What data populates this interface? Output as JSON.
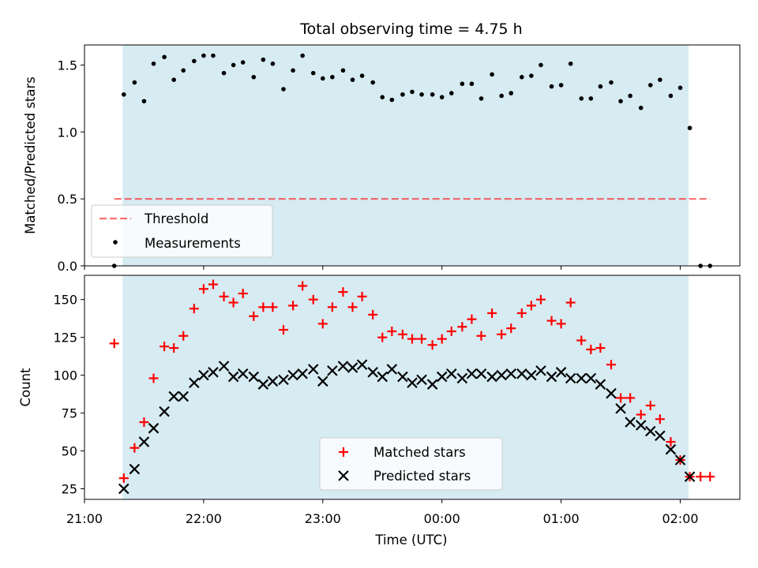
{
  "chart_data": {
    "type": "scatter",
    "title": "Total observing time = 4.75 h",
    "xlabel": "Time (UTC)",
    "x_ticks": [
      "21:00",
      "22:00",
      "23:00",
      "00:00",
      "01:00",
      "02:00"
    ],
    "x_unit": "hours since 21:00 UTC",
    "xlim": [
      0,
      5.5
    ],
    "shaded_interval": [
      0.32,
      5.07
    ],
    "panels": [
      {
        "ylabel": "Matched/Predicted stars",
        "ylim": [
          0,
          1.65
        ],
        "y_ticks": [
          0.0,
          0.5,
          1.0,
          1.5
        ],
        "y_tick_labels": [
          "0.0",
          "0.5",
          "1.0",
          "1.5"
        ],
        "legend": [
          "Threshold",
          "Measurements"
        ],
        "threshold": 0.5,
        "threshold_x": [
          0.25,
          5.25
        ],
        "series": [
          {
            "name": "Measurements",
            "x": [
              0.25,
              0.33,
              0.42,
              0.5,
              0.58,
              0.67,
              0.75,
              0.83,
              0.92,
              1.0,
              1.08,
              1.17,
              1.25,
              1.33,
              1.42,
              1.5,
              1.58,
              1.67,
              1.75,
              1.83,
              1.92,
              2.0,
              2.08,
              2.17,
              2.25,
              2.33,
              2.42,
              2.5,
              2.58,
              2.67,
              2.75,
              2.83,
              2.92,
              3.0,
              3.08,
              3.17,
              3.25,
              3.33,
              3.42,
              3.5,
              3.58,
              3.67,
              3.75,
              3.83,
              3.92,
              4.0,
              4.08,
              4.17,
              4.25,
              4.33,
              4.42,
              4.5,
              4.58,
              4.67,
              4.75,
              4.83,
              4.92,
              5.0,
              5.08,
              5.17,
              5.25
            ],
            "values": [
              0.0,
              1.28,
              1.37,
              1.23,
              1.51,
              1.56,
              1.39,
              1.46,
              1.53,
              1.57,
              1.57,
              1.44,
              1.5,
              1.52,
              1.41,
              1.54,
              1.51,
              1.32,
              1.46,
              1.57,
              1.44,
              1.4,
              1.41,
              1.46,
              1.39,
              1.42,
              1.37,
              1.26,
              1.24,
              1.28,
              1.3,
              1.28,
              1.28,
              1.26,
              1.29,
              1.36,
              1.36,
              1.25,
              1.43,
              1.27,
              1.29,
              1.41,
              1.42,
              1.5,
              1.34,
              1.35,
              1.51,
              1.25,
              1.25,
              1.34,
              1.37,
              1.23,
              1.27,
              1.18,
              1.35,
              1.39,
              1.27,
              1.33,
              1.03,
              0.0,
              0.0
            ]
          }
        ]
      },
      {
        "ylabel": "Count",
        "ylim": [
          18,
          166
        ],
        "y_ticks": [
          25,
          50,
          75,
          100,
          125,
          150
        ],
        "y_tick_labels": [
          "25",
          "50",
          "75",
          "100",
          "125",
          "150"
        ],
        "legend": [
          "Matched stars",
          "Predicted stars"
        ],
        "series": [
          {
            "name": "Matched stars",
            "color": "#ff0000",
            "x": [
              0.25,
              0.33,
              0.42,
              0.5,
              0.58,
              0.67,
              0.75,
              0.83,
              0.92,
              1.0,
              1.08,
              1.17,
              1.25,
              1.33,
              1.42,
              1.5,
              1.58,
              1.67,
              1.75,
              1.83,
              1.92,
              2.0,
              2.08,
              2.17,
              2.25,
              2.33,
              2.42,
              2.5,
              2.58,
              2.67,
              2.75,
              2.83,
              2.92,
              3.0,
              3.08,
              3.17,
              3.25,
              3.33,
              3.42,
              3.5,
              3.58,
              3.67,
              3.75,
              3.83,
              3.92,
              4.0,
              4.08,
              4.17,
              4.25,
              4.33,
              4.42,
              4.5,
              4.58,
              4.67,
              4.75,
              4.83,
              4.92,
              5.0,
              5.08,
              5.17,
              5.25
            ],
            "values": [
              121,
              32,
              52,
              69,
              98,
              119,
              118,
              126,
              144,
              157,
              160,
              152,
              148,
              154,
              139,
              145,
              145,
              130,
              146,
              159,
              150,
              134,
              145,
              155,
              145,
              152,
              140,
              125,
              129,
              127,
              124,
              124,
              120,
              124,
              129,
              132,
              137,
              126,
              141,
              127,
              131,
              141,
              146,
              150,
              136,
              134,
              148,
              123,
              117,
              118,
              107,
              85,
              85,
              74,
              80,
              71,
              56,
              44,
              33,
              33,
              33
            ]
          },
          {
            "name": "Predicted stars",
            "color": "#000000",
            "x": [
              0.33,
              0.42,
              0.5,
              0.58,
              0.67,
              0.75,
              0.83,
              0.92,
              1.0,
              1.08,
              1.17,
              1.25,
              1.33,
              1.42,
              1.5,
              1.58,
              1.67,
              1.75,
              1.83,
              1.92,
              2.0,
              2.08,
              2.17,
              2.25,
              2.33,
              2.42,
              2.5,
              2.58,
              2.67,
              2.75,
              2.83,
              2.92,
              3.0,
              3.08,
              3.17,
              3.25,
              3.33,
              3.42,
              3.5,
              3.58,
              3.67,
              3.75,
              3.83,
              3.92,
              4.0,
              4.08,
              4.17,
              4.25,
              4.33,
              4.42,
              4.5,
              4.58,
              4.67,
              4.75,
              4.83,
              4.92,
              5.0,
              5.08
            ],
            "values": [
              25,
              38,
              56,
              65,
              76,
              86,
              86,
              95,
              100,
              102,
              106,
              99,
              101,
              99,
              94,
              96,
              97,
              100,
              101,
              104,
              96,
              103,
              106,
              105,
              107,
              102,
              99,
              104,
              99,
              95,
              97,
              94,
              99,
              101,
              98,
              101,
              101,
              99,
              100,
              101,
              101,
              100,
              103,
              99,
              102,
              98,
              98,
              98,
              94,
              88,
              78,
              69,
              67,
              63,
              60,
              51,
              44,
              33
            ]
          }
        ]
      }
    ]
  },
  "colors": {
    "shade": "#add8e6",
    "threshold": "#ff0000",
    "matched": "#ff0000",
    "predicted": "#000000",
    "measurements": "#000000"
  }
}
